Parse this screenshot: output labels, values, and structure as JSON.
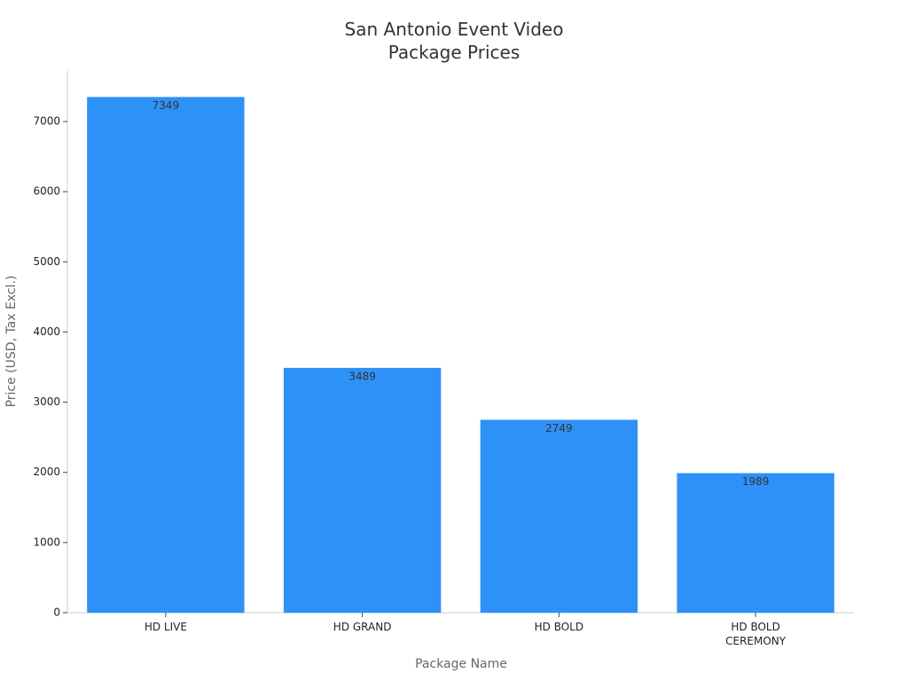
{
  "chart_data": {
    "type": "bar",
    "title": "San Antonio Event Video\nPackage Prices",
    "x_label": "Package Name",
    "y_label": "Price (USD, Tax Excl.)",
    "categories": [
      "HD LIVE",
      "HD GRAND",
      "HD BOLD",
      "HD BOLD CEREMONY"
    ],
    "values": [
      7349,
      3489,
      2749,
      1989
    ],
    "color": "#2e91f8",
    "ylim": [
      0,
      7720
    ],
    "yticks": [
      0,
      1000,
      2000,
      3000,
      4000,
      5000,
      6000,
      7000
    ],
    "grid": false
  }
}
